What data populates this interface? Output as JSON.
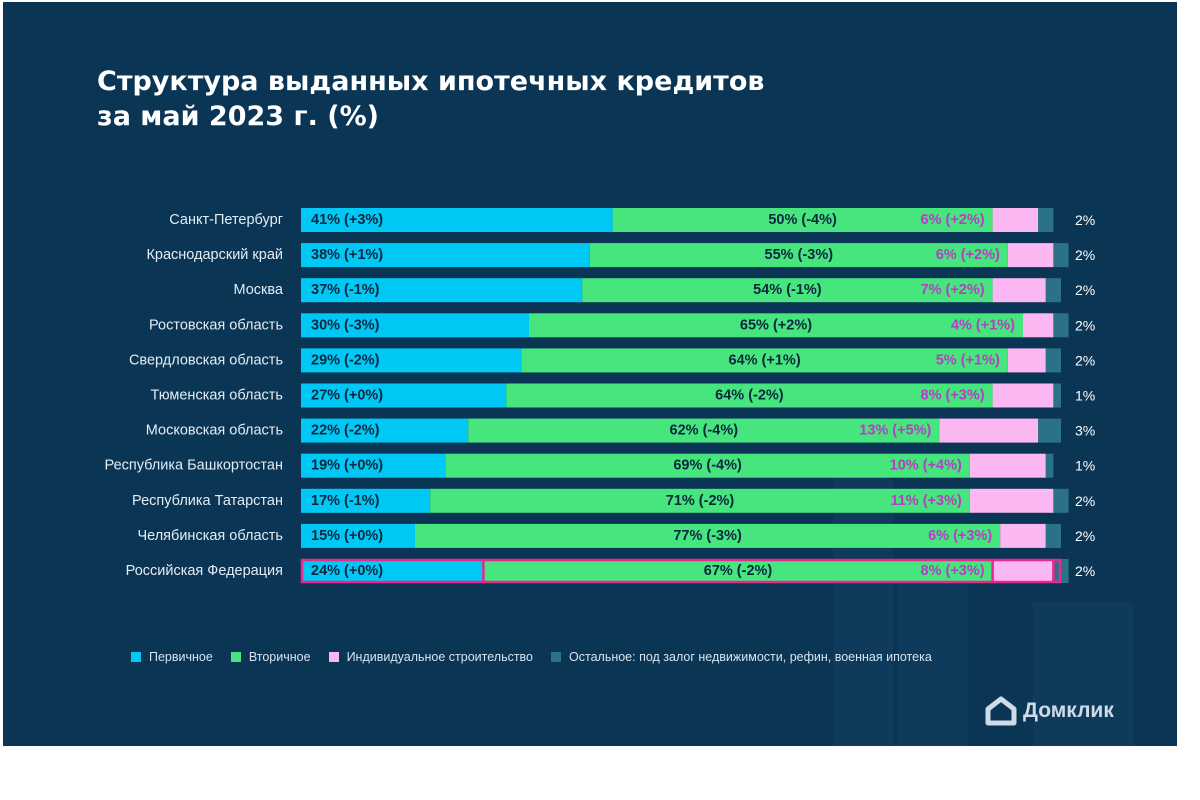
{
  "title_lines": [
    "Структура выданных ипотечных кредитов",
    "за май 2023 г. (%)"
  ],
  "chart_data": {
    "type": "bar",
    "orientation": "horizontal",
    "stacked": true,
    "title": "Структура выданных ипотечных кредитов за май 2023 г. (%)",
    "xlabel": "",
    "ylabel": "",
    "xlim": [
      0,
      100
    ],
    "grid": false,
    "legend_position": "bottom",
    "categories": [
      "Санкт-Петербург",
      "Краснодарский край",
      "Москва",
      "Ростовская область",
      "Свердловская область",
      "Тюменская область",
      "Московская область",
      "Республика Башкортостан",
      "Республика Татарстан",
      "Челябинская область",
      "Российская Федерация"
    ],
    "highlighted_category": "Российская Федерация",
    "series": [
      {
        "name": "Первичное",
        "color": "#00c8f5",
        "label_color": "#0b2740",
        "values": [
          41,
          38,
          37,
          30,
          29,
          27,
          22,
          19,
          17,
          15,
          24
        ],
        "labels": [
          "41% (+3%)",
          "38% (+1%)",
          "37% (-1%)",
          "30% (-3%)",
          "29% (-2%)",
          "27% (+0%)",
          "22% (-2%)",
          "19% (+0%)",
          "17% (-1%)",
          "15% (+0%)",
          "24% (+0%)"
        ]
      },
      {
        "name": "Вторичное",
        "color": "#47e57e",
        "label_color": "#0b2740",
        "values": [
          50,
          55,
          54,
          65,
          64,
          64,
          62,
          69,
          71,
          77,
          67
        ],
        "labels": [
          "50% (-4%)",
          "55% (-3%)",
          "54% (-1%)",
          "65% (+2%)",
          "64% (+1%)",
          "64% (-2%)",
          "62% (-4%)",
          "69% (-4%)",
          "71% (-2%)",
          "77% (-3%)",
          "67% (-2%)"
        ]
      },
      {
        "name": "Индивидуальное строительство",
        "color": "#fbb7f2",
        "label_color": "#b43fc4",
        "values": [
          6,
          6,
          7,
          4,
          5,
          8,
          13,
          10,
          11,
          6,
          8
        ],
        "labels": [
          "6% (+2%)",
          "6% (+2%)",
          "7% (+2%)",
          "4% (+1%)",
          "5% (+1%)",
          "8% (+3%)",
          "13% (+5%)",
          "10% (+4%)",
          "11% (+3%)",
          "6% (+3%)",
          "8% (+3%)"
        ]
      },
      {
        "name": "Остальное: под залог недвижимости, рефин, военная ипотека",
        "color": "#2b7288",
        "label_color": "#ffffff",
        "values": [
          2,
          2,
          2,
          2,
          2,
          1,
          3,
          1,
          2,
          2,
          2
        ],
        "labels": [
          "2%",
          "2%",
          "2%",
          "2%",
          "2%",
          "1%",
          "3%",
          "1%",
          "2%",
          "2%",
          "2%"
        ]
      }
    ]
  },
  "colors": {
    "background": "#0b3554",
    "category_label": "#e3ecf4",
    "highlight_border": "#e6288f"
  },
  "logo": {
    "icon": "domclick-house-icon",
    "text": "Домклик"
  }
}
